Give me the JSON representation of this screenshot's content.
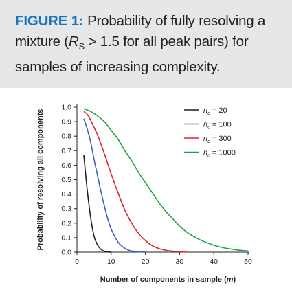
{
  "figure": {
    "label": "FIGURE 1:",
    "caption_part1": " Probability of fully resolving a mixture (",
    "caption_symbol": "R",
    "caption_subscript": "S",
    "caption_part2": " > 1.5 for all peak pairs) for samples of increasing complexity."
  },
  "chart_data": {
    "type": "line",
    "title": "",
    "xlabel": "Number of components in sample (m)",
    "ylabel": "Probability of resolving all components",
    "xlim": [
      0,
      50
    ],
    "ylim": [
      0,
      1.0
    ],
    "x_ticks": [
      0,
      10,
      20,
      30,
      40,
      50
    ],
    "x_tick_labels": [
      "0",
      "10",
      "20",
      "30",
      "40",
      "50"
    ],
    "y_ticks": [
      0.0,
      0.1,
      0.2,
      0.3,
      0.4,
      0.5,
      0.6,
      0.7,
      0.8,
      0.9,
      1.0
    ],
    "y_tick_labels": [
      "0.0",
      "0.1",
      "0.2",
      "0.3",
      "0.4",
      "0.5",
      "0.6",
      "0.7",
      "0.8",
      "0.9",
      "1.0"
    ],
    "grid": false,
    "legend_position": "top-right",
    "series": [
      {
        "name": "n_c = 20",
        "legend_var": "n",
        "legend_sub": "c",
        "legend_value": " = 20",
        "color": "#231f20",
        "x": [
          2,
          3,
          4,
          5,
          6,
          7,
          8,
          9,
          10
        ],
        "y": [
          0.67,
          0.43,
          0.24,
          0.11,
          0.05,
          0.02,
          0.006,
          0.002,
          0.0
        ]
      },
      {
        "name": "n_c = 100",
        "legend_var": "n",
        "legend_sub": "c",
        "legend_value": " = 100",
        "color": "#3f5fbf",
        "x": [
          2,
          3,
          4,
          5,
          6,
          7,
          8,
          9,
          10,
          11,
          12,
          13,
          14,
          15,
          16,
          17,
          18,
          20
        ],
        "y": [
          0.92,
          0.85,
          0.76,
          0.64,
          0.53,
          0.42,
          0.32,
          0.23,
          0.16,
          0.11,
          0.07,
          0.044,
          0.027,
          0.015,
          0.008,
          0.004,
          0.002,
          0.0
        ]
      },
      {
        "name": "n_c = 300",
        "legend_var": "n",
        "legend_sub": "c",
        "legend_value": " = 300",
        "color": "#d9282f",
        "x": [
          2,
          3,
          4,
          5,
          6,
          8,
          10,
          12,
          14,
          16,
          18,
          20,
          22,
          24,
          26,
          28,
          30,
          32
        ],
        "y": [
          0.97,
          0.95,
          0.91,
          0.86,
          0.81,
          0.68,
          0.54,
          0.41,
          0.29,
          0.2,
          0.13,
          0.08,
          0.045,
          0.025,
          0.013,
          0.006,
          0.003,
          0.0
        ]
      },
      {
        "name": "n_c = 1000",
        "legend_var": "n",
        "legend_sub": "c",
        "legend_value": " = 1000",
        "color": "#1fa243",
        "x": [
          2,
          4,
          6,
          8,
          10,
          12,
          14,
          16,
          18,
          20,
          22,
          24,
          26,
          28,
          30,
          32,
          34,
          36,
          38,
          40,
          42,
          44,
          46,
          48,
          50
        ],
        "y": [
          0.99,
          0.97,
          0.94,
          0.9,
          0.84,
          0.78,
          0.7,
          0.63,
          0.55,
          0.48,
          0.41,
          0.34,
          0.28,
          0.23,
          0.18,
          0.14,
          0.11,
          0.085,
          0.065,
          0.048,
          0.035,
          0.025,
          0.018,
          0.012,
          0.008
        ]
      }
    ]
  }
}
